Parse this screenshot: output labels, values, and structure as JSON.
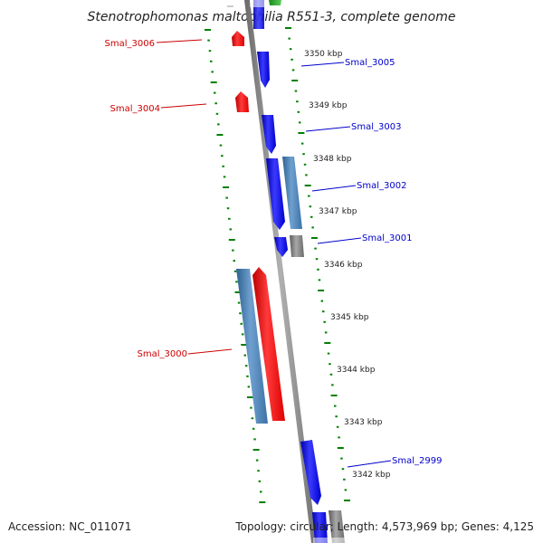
{
  "title": "Stenotrophomonas maltophilia R551-3, complete genome",
  "footer": {
    "accession": "Accession: NC_011071",
    "summary": "Topology: circular; Length: 4,573,969 bp; Genes: 4,125"
  },
  "colors": {
    "forward_gene": "#0000ff",
    "reverse_gene": "#ff0000",
    "steelblue_gene": "#4682b4",
    "grey_gene": "#808080",
    "tick": "#008000",
    "backbone": "#888888",
    "label_forward": "#0000cc",
    "label_reverse": "#cc0000"
  },
  "position_labels": [
    "3350 kbp",
    "3349 kbp",
    "3348 kbp",
    "3347 kbp",
    "3346 kbp",
    "3345 kbp",
    "3344 kbp",
    "3343 kbp",
    "3342 kbp"
  ],
  "gene_labels": {
    "smal_3006": "Smal_3006",
    "smal_3005": "Smal_3005",
    "smal_3004": "Smal_3004",
    "smal_3003": "Smal_3003",
    "smal_3002": "Smal_3002",
    "smal_3001": "Smal_3001",
    "smal_3000": "Smal_3000",
    "smal_2999": "Smal_2999"
  }
}
